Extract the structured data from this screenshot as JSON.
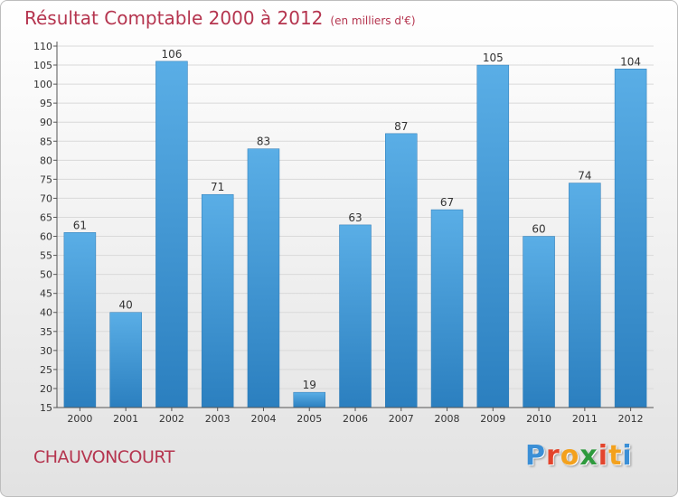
{
  "header": {
    "title": "Résultat Comptable 2000 à 2012",
    "subtitle": "(en milliers d'€)"
  },
  "footer": {
    "commune": "CHAUVONCOURT",
    "brand_letters": [
      "P",
      "r",
      "o",
      "x",
      "i",
      "t",
      "i"
    ]
  },
  "colors": {
    "accent": "#b5354f",
    "bar_top": "#5aaee6",
    "bar_bottom": "#2b7fbf",
    "brand": [
      "#3b8fd6",
      "#e3442c",
      "#f3a11d",
      "#2e9a3d",
      "#e3442c",
      "#f3a11d",
      "#3b8fd6"
    ]
  },
  "chart_data": {
    "type": "bar",
    "title": "Résultat Comptable 2000 à 2012",
    "subtitle": "(en milliers d'€)",
    "xlabel": "",
    "ylabel": "",
    "categories": [
      "2000",
      "2001",
      "2002",
      "2003",
      "2004",
      "2005",
      "2006",
      "2007",
      "2008",
      "2009",
      "2010",
      "2011",
      "2012"
    ],
    "values": [
      61,
      40,
      106,
      71,
      83,
      19,
      63,
      87,
      67,
      105,
      60,
      74,
      104
    ],
    "ylim": [
      15,
      110
    ],
    "yticks": [
      15,
      20,
      25,
      30,
      35,
      40,
      45,
      50,
      55,
      60,
      65,
      70,
      75,
      80,
      85,
      90,
      95,
      100,
      105,
      110
    ],
    "grid": true
  }
}
